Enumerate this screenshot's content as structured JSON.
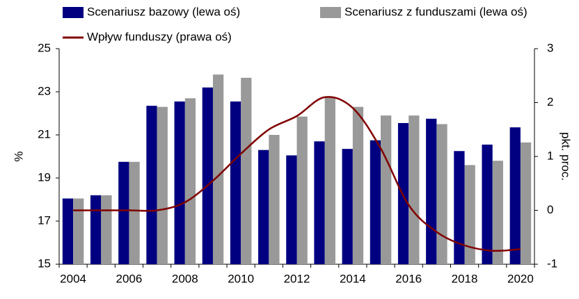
{
  "chart_data": {
    "type": "bar",
    "categories": [
      "2004",
      null,
      "2006",
      null,
      "2008",
      null,
      "2010",
      null,
      "2012",
      null,
      "2014",
      null,
      "2016",
      null,
      "2018",
      null,
      "2020"
    ],
    "series": [
      {
        "name": "Scenariusz bazowy (lewa oś)",
        "color": "#000080",
        "type": "bar",
        "values": [
          18.05,
          18.2,
          19.75,
          22.35,
          22.55,
          23.2,
          22.55,
          20.3,
          20.05,
          20.7,
          20.35,
          20.75,
          21.55,
          21.75,
          20.25,
          20.55,
          21.35
        ]
      },
      {
        "name": "Scenariusz z funduszami (lewa oś)",
        "color": "#999999",
        "type": "bar",
        "values": [
          18.05,
          18.2,
          19.75,
          22.3,
          22.7,
          23.8,
          23.65,
          21.0,
          21.85,
          22.75,
          22.3,
          21.9,
          21.9,
          21.5,
          19.6,
          19.8,
          20.65
        ]
      },
      {
        "name": "Wpływ funduszy (prawa oś)",
        "color": "#800000",
        "type": "line",
        "axis": "y2",
        "values": [
          0,
          0,
          0,
          0,
          0.15,
          0.55,
          1.05,
          1.5,
          1.75,
          2.1,
          1.9,
          1.15,
          0.1,
          -0.4,
          -0.65,
          -0.75,
          -0.72
        ]
      }
    ],
    "ylabel": "%",
    "y2label": "pkt. proc.",
    "ylim": [
      15,
      25
    ],
    "yticks": [
      15,
      17,
      19,
      21,
      23,
      25
    ],
    "y2lim": [
      -1,
      3
    ],
    "y2ticks": [
      -1,
      0,
      1,
      2,
      3
    ],
    "grid": false
  }
}
